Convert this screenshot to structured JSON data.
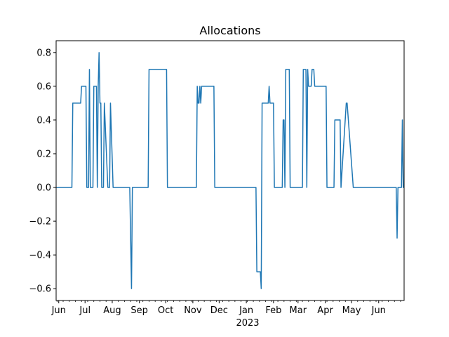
{
  "chart_data": {
    "type": "line",
    "title": "Allocations",
    "xlabel": "",
    "ylabel": "",
    "xlim": [
      "2022-05-29",
      "2023-06-30"
    ],
    "ylim": [
      -0.67,
      0.87
    ],
    "yticks": [
      -0.6,
      -0.4,
      -0.2,
      0.0,
      0.2,
      0.4,
      0.6,
      0.8
    ],
    "ytick_labels": [
      "−0.6",
      "−0.4",
      "−0.2",
      "0.0",
      "0.2",
      "0.4",
      "0.6",
      "0.8"
    ],
    "xticks": [
      {
        "date": "2022-06-01",
        "label": "Jun"
      },
      {
        "date": "2022-07-01",
        "label": "Jul"
      },
      {
        "date": "2022-08-01",
        "label": "Aug"
      },
      {
        "date": "2022-09-01",
        "label": "Sep"
      },
      {
        "date": "2022-10-01",
        "label": "Oct"
      },
      {
        "date": "2022-11-01",
        "label": "Nov"
      },
      {
        "date": "2022-12-01",
        "label": "Dec"
      },
      {
        "date": "2023-01-01",
        "label": "Jan"
      },
      {
        "date": "2023-02-01",
        "label": "Feb"
      },
      {
        "date": "2023-03-01",
        "label": "Mar"
      },
      {
        "date": "2023-04-01",
        "label": "Apr"
      },
      {
        "date": "2023-05-01",
        "label": "May"
      },
      {
        "date": "2023-06-01",
        "label": "Jun"
      }
    ],
    "year_label": "2023",
    "grid": false,
    "series": [
      {
        "color": "#1f77b4",
        "x": [
          "2022-05-29",
          "2022-06-16",
          "2022-06-17",
          "2022-06-26",
          "2022-06-27",
          "2022-07-02",
          "2022-07-03",
          "2022-07-05",
          "2022-07-06",
          "2022-07-07",
          "2022-07-08",
          "2022-07-10",
          "2022-07-11",
          "2022-07-14",
          "2022-07-15",
          "2022-07-16",
          "2022-07-17",
          "2022-07-18",
          "2022-07-19",
          "2022-07-20",
          "2022-07-21",
          "2022-07-22",
          "2022-07-23",
          "2022-07-27",
          "2022-07-28",
          "2022-07-29",
          "2022-07-30",
          "2022-08-02",
          "2022-08-03",
          "2022-08-04",
          "2022-08-05",
          "2022-08-21",
          "2022-08-23",
          "2022-08-24",
          "2022-09-11",
          "2022-09-12",
          "2022-10-02",
          "2022-10-03",
          "2022-11-04",
          "2022-11-05",
          "2022-11-06",
          "2022-11-07",
          "2022-11-08",
          "2022-11-09",
          "2022-11-10",
          "2022-11-11",
          "2022-11-12",
          "2022-11-25",
          "2022-11-26",
          "2023-01-12",
          "2023-01-13",
          "2023-01-17",
          "2023-01-18",
          "2023-01-19",
          "2023-01-26",
          "2023-01-27",
          "2023-01-28",
          "2023-02-01",
          "2023-02-02",
          "2023-02-11",
          "2023-02-12",
          "2023-02-13",
          "2023-02-14",
          "2023-02-15",
          "2023-02-16",
          "2023-02-19",
          "2023-02-20",
          "2023-03-06",
          "2023-03-07",
          "2023-03-10",
          "2023-03-11",
          "2023-03-12",
          "2023-03-13",
          "2023-03-16",
          "2023-03-17",
          "2023-03-19",
          "2023-03-20",
          "2023-04-02",
          "2023-04-03",
          "2023-04-11",
          "2023-04-12",
          "2023-04-18",
          "2023-04-19",
          "2023-04-25",
          "2023-04-26",
          "2023-05-03",
          "2023-05-04",
          "2023-06-21",
          "2023-06-22",
          "2023-06-23",
          "2023-06-27",
          "2023-06-28",
          "2023-06-29",
          "2023-06-30"
        ],
        "y": [
          0,
          0,
          0.5,
          0.5,
          0.6,
          0.6,
          0,
          0,
          0.7,
          0,
          0,
          0,
          0.6,
          0.6,
          0,
          0.6,
          0.8,
          0.5,
          0.5,
          0,
          0,
          0,
          0.5,
          0,
          0,
          0,
          0.5,
          0,
          0,
          0,
          0,
          0,
          -0.6,
          0,
          0,
          0.7,
          0.7,
          0,
          0,
          0,
          0.6,
          0.5,
          0.5,
          0.6,
          0.5,
          0.6,
          0.6,
          0.6,
          0,
          0,
          -0.5,
          -0.5,
          -0.6,
          0.5,
          0.5,
          0.6,
          0.5,
          0.5,
          0,
          0,
          0.4,
          0.4,
          0,
          0.7,
          0.7,
          0.7,
          0,
          0,
          0.7,
          0.7,
          0,
          0.7,
          0.6,
          0.6,
          0.7,
          0.7,
          0.6,
          0.6,
          0,
          0,
          0.4,
          0.4,
          0,
          0.5,
          0.5,
          0,
          0,
          0,
          -0.3,
          0,
          0,
          0.4,
          0,
          0
        ]
      }
    ]
  }
}
